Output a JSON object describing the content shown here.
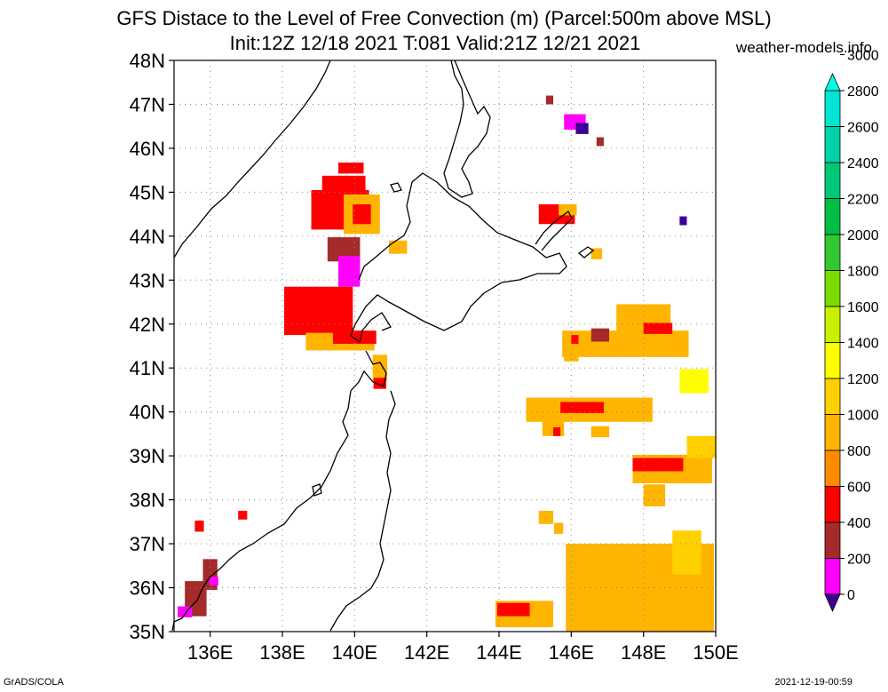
{
  "header": {
    "title_line1": "GFS Distace to the Level of Free Convection (m) (Parcel:500m above MSL)",
    "title_line2": "Init:12Z 12/18 2021 T:081 Valid:21Z 12/21 2021",
    "brand": "weather-models.info"
  },
  "footer": {
    "left": "GrADS/COLA",
    "right": "2021-12-19-00:59"
  },
  "map": {
    "lon_range": [
      135,
      150
    ],
    "lat_range": [
      35,
      48
    ],
    "lat_labels": [
      "35N",
      "36N",
      "37N",
      "38N",
      "39N",
      "40N",
      "41N",
      "42N",
      "43N",
      "44N",
      "45N",
      "46N",
      "47N",
      "48N"
    ],
    "lon_labels": [
      "136E",
      "138E",
      "140E",
      "142E",
      "144E",
      "146E",
      "148E",
      "150E"
    ],
    "lat_values": [
      35,
      36,
      37,
      38,
      39,
      40,
      41,
      42,
      43,
      44,
      45,
      46,
      47,
      48
    ],
    "lon_values": [
      136,
      138,
      140,
      142,
      144,
      146,
      148,
      150
    ],
    "grid": true
  },
  "colorbar": {
    "levels": [
      "0",
      "200",
      "400",
      "600",
      "800",
      "1000",
      "1200",
      "1400",
      "1600",
      "1800",
      "2000",
      "2200",
      "2400",
      "2600",
      "2800",
      "3000"
    ],
    "colors": [
      "#3c0096",
      "#ff00ff",
      "#a52a2a",
      "#ff0000",
      "#ff8c00",
      "#ffb400",
      "#ffd000",
      "#ffff00",
      "#c8f000",
      "#78dc00",
      "#32c832",
      "#00be46",
      "#00c878",
      "#00d2aa",
      "#00e6d2",
      "#00ffe6"
    ],
    "under_color": "#3c0096",
    "over_color": "#00ffe6"
  },
  "fields": [
    {
      "lon": 139.9,
      "lat": 45.55,
      "dlon": 0.7,
      "dlat": 0.25,
      "color": "#ff0000"
    },
    {
      "lon": 139.7,
      "lat": 45.2,
      "dlon": 1.2,
      "dlat": 0.35,
      "color": "#ff0000"
    },
    {
      "lon": 139.6,
      "lat": 44.6,
      "dlon": 1.6,
      "dlat": 0.9,
      "color": "#ff0000"
    },
    {
      "lon": 140.2,
      "lat": 44.5,
      "dlon": 1.0,
      "dlat": 0.9,
      "color": "#ffb400"
    },
    {
      "lon": 140.2,
      "lat": 44.5,
      "dlon": 0.5,
      "dlat": 0.45,
      "color": "#ff0000"
    },
    {
      "lon": 139.7,
      "lat": 43.7,
      "dlon": 0.9,
      "dlat": 0.55,
      "color": "#a52a2a"
    },
    {
      "lon": 139.85,
      "lat": 43.2,
      "dlon": 0.6,
      "dlat": 0.7,
      "color": "#ff00ff"
    },
    {
      "lon": 139.0,
      "lat": 42.3,
      "dlon": 1.9,
      "dlat": 1.1,
      "color": "#ff0000"
    },
    {
      "lon": 138.4,
      "lat": 42.6,
      "dlon": 0.3,
      "dlat": 0.2,
      "color": "#ff0000"
    },
    {
      "lon": 139.6,
      "lat": 41.6,
      "dlon": 1.9,
      "dlat": 0.4,
      "color": "#ffb400"
    },
    {
      "lon": 140.0,
      "lat": 41.7,
      "dlon": 1.2,
      "dlat": 0.3,
      "color": "#ff0000"
    },
    {
      "lon": 140.7,
      "lat": 41.0,
      "dlon": 0.4,
      "dlat": 0.6,
      "color": "#ffb400"
    },
    {
      "lon": 140.7,
      "lat": 40.65,
      "dlon": 0.35,
      "dlat": 0.25,
      "color": "#ff0000"
    },
    {
      "lon": 141.2,
      "lat": 43.75,
      "dlon": 0.5,
      "dlat": 0.3,
      "color": "#ffb400"
    },
    {
      "lon": 145.6,
      "lat": 44.5,
      "dlon": 1.0,
      "dlat": 0.45,
      "color": "#ff0000"
    },
    {
      "lon": 145.9,
      "lat": 44.6,
      "dlon": 0.5,
      "dlat": 0.25,
      "color": "#ffb400"
    },
    {
      "lon": 146.7,
      "lat": 43.6,
      "dlon": 0.3,
      "dlat": 0.25,
      "color": "#ffb400"
    },
    {
      "lon": 146.1,
      "lat": 46.6,
      "dlon": 0.6,
      "dlat": 0.35,
      "color": "#ff00ff"
    },
    {
      "lon": 146.3,
      "lat": 46.45,
      "dlon": 0.35,
      "dlat": 0.25,
      "color": "#3c0096"
    },
    {
      "lon": 146.8,
      "lat": 46.15,
      "dlon": 0.2,
      "dlat": 0.2,
      "color": "#a52a2a"
    },
    {
      "lon": 145.4,
      "lat": 47.1,
      "dlon": 0.2,
      "dlat": 0.2,
      "color": "#a52a2a"
    },
    {
      "lon": 149.1,
      "lat": 44.35,
      "dlon": 0.2,
      "dlat": 0.2,
      "color": "#3c0096"
    },
    {
      "lon": 148.0,
      "lat": 42.1,
      "dlon": 1.5,
      "dlat": 0.7,
      "color": "#ffb400"
    },
    {
      "lon": 147.5,
      "lat": 41.55,
      "dlon": 3.5,
      "dlat": 0.6,
      "color": "#ffb400"
    },
    {
      "lon": 148.4,
      "lat": 41.9,
      "dlon": 0.8,
      "dlat": 0.25,
      "color": "#ff0000"
    },
    {
      "lon": 146.8,
      "lat": 41.75,
      "dlon": 0.5,
      "dlat": 0.3,
      "color": "#a52a2a"
    },
    {
      "lon": 146.1,
      "lat": 41.65,
      "dlon": 0.2,
      "dlat": 0.2,
      "color": "#ff0000"
    },
    {
      "lon": 146.0,
      "lat": 41.35,
      "dlon": 0.4,
      "dlat": 0.4,
      "color": "#ffb400"
    },
    {
      "lon": 149.4,
      "lat": 40.7,
      "dlon": 0.8,
      "dlat": 0.55,
      "color": "#ffff00"
    },
    {
      "lon": 146.5,
      "lat": 40.05,
      "dlon": 3.5,
      "dlat": 0.55,
      "color": "#ffb400"
    },
    {
      "lon": 146.3,
      "lat": 40.1,
      "dlon": 1.2,
      "dlat": 0.25,
      "color": "#ff0000"
    },
    {
      "lon": 145.5,
      "lat": 39.7,
      "dlon": 0.6,
      "dlat": 0.5,
      "color": "#ffb400"
    },
    {
      "lon": 145.6,
      "lat": 39.55,
      "dlon": 0.2,
      "dlat": 0.2,
      "color": "#ff0000"
    },
    {
      "lon": 146.8,
      "lat": 39.55,
      "dlon": 0.5,
      "dlat": 0.25,
      "color": "#ffb400"
    },
    {
      "lon": 148.8,
      "lat": 38.7,
      "dlon": 2.2,
      "dlat": 0.65,
      "color": "#ffb400"
    },
    {
      "lon": 148.4,
      "lat": 38.8,
      "dlon": 1.4,
      "dlat": 0.3,
      "color": "#ff0000"
    },
    {
      "lon": 149.6,
      "lat": 39.2,
      "dlon": 0.8,
      "dlat": 0.5,
      "color": "#ffd000"
    },
    {
      "lon": 148.3,
      "lat": 38.1,
      "dlon": 0.6,
      "dlat": 0.5,
      "color": "#ffb400"
    },
    {
      "lon": 147.9,
      "lat": 36.0,
      "dlon": 4.1,
      "dlat": 2.0,
      "color": "#ffb400"
    },
    {
      "lon": 149.2,
      "lat": 36.8,
      "dlon": 0.8,
      "dlat": 1.0,
      "color": "#ffd000"
    },
    {
      "lon": 145.3,
      "lat": 37.6,
      "dlon": 0.4,
      "dlat": 0.3,
      "color": "#ffb400"
    },
    {
      "lon": 145.65,
      "lat": 37.35,
      "dlon": 0.25,
      "dlat": 0.25,
      "color": "#ffb400"
    },
    {
      "lon": 144.7,
      "lat": 35.4,
      "dlon": 1.6,
      "dlat": 0.6,
      "color": "#ffb400"
    },
    {
      "lon": 144.4,
      "lat": 35.5,
      "dlon": 0.9,
      "dlat": 0.3,
      "color": "#ff0000"
    },
    {
      "lon": 136.0,
      "lat": 36.3,
      "dlon": 0.4,
      "dlat": 0.7,
      "color": "#a52a2a"
    },
    {
      "lon": 136.1,
      "lat": 36.15,
      "dlon": 0.25,
      "dlat": 0.2,
      "color": "#ff00ff"
    },
    {
      "lon": 135.6,
      "lat": 35.75,
      "dlon": 0.6,
      "dlat": 0.8,
      "color": "#a52a2a"
    },
    {
      "lon": 135.3,
      "lat": 35.45,
      "dlon": 0.4,
      "dlat": 0.25,
      "color": "#ff00ff"
    },
    {
      "lon": 135.7,
      "lat": 37.4,
      "dlon": 0.25,
      "dlat": 0.25,
      "color": "#ff0000"
    },
    {
      "lon": 136.9,
      "lat": 37.65,
      "dlon": 0.25,
      "dlat": 0.2,
      "color": "#ff0000"
    }
  ]
}
